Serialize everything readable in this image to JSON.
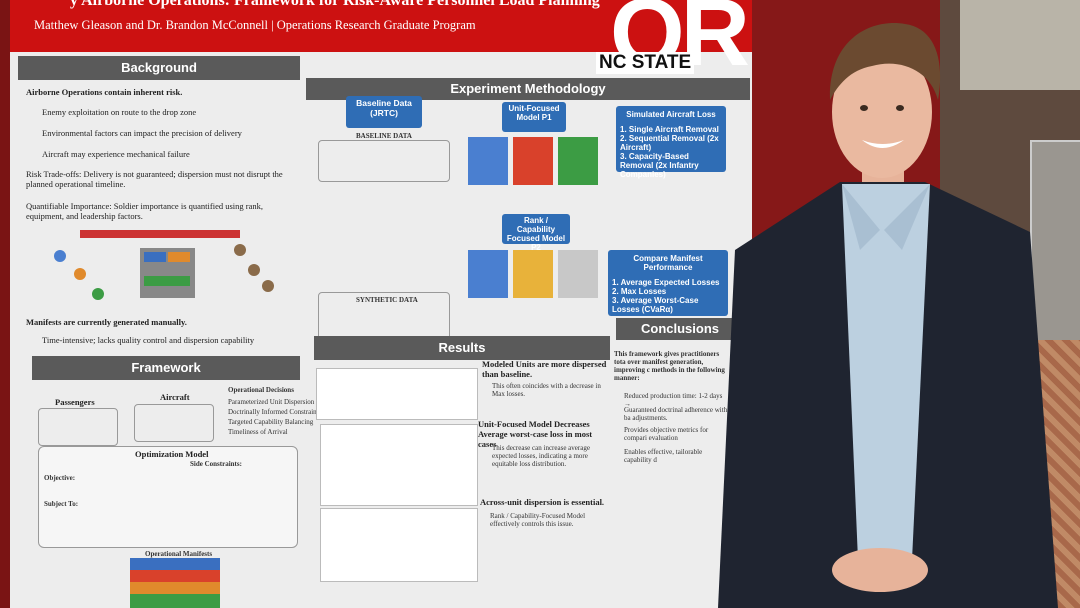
{
  "poster": {
    "title": "y Airborne Operations: Framework for Risk-Aware Personnel Load Planning",
    "authors": "Matthew Gleason and Dr. Brandon McConnell | Operations Research Graduate Program",
    "logo": {
      "mark": "OR",
      "school": "NC STATE"
    },
    "background": {
      "heading": "Background",
      "items": [
        "Airborne Operations contain inherent risk.",
        "Enemy exploitation on route to the drop zone",
        "Environmental factors can impact the precision of delivery",
        "Aircraft may experience mechanical failure",
        "Risk Trade-offs: Delivery is not guaranteed; dispersion must not disrupt the planned operational timeline.",
        "Quantifiable Importance: Soldier importance is quantified using rank, equipment, and leadership factors.",
        "Manifests are currently generated manually.",
        "Time-intensive; lacks quality control and dispersion capability"
      ]
    },
    "framework": {
      "heading": "Framework",
      "passengers": "Passengers",
      "aircraft": "Aircraft",
      "decisions_title": "Operational Decisions",
      "decisions": [
        "Parameterized Unit Dispersion",
        "Doctrinally Informed Constraints",
        "Targeted Capability Balancing",
        "Timeliness of Arrival"
      ],
      "model": "Optimization Model",
      "objective": "Objective:",
      "subject_to": "Subject To:",
      "side_constraints": "Side Constraints:",
      "manifests": "Operational Manifests"
    },
    "methodology": {
      "heading": "Experiment Methodology",
      "baseline": "Baseline Data (JRTC)",
      "baseline_data": "BASELINE DATA",
      "synthetic_data": "SYNTHETIC DATA",
      "unit_model": "Unit-Focused Model P1",
      "rank_model": "Rank / Capability Focused Model P2",
      "loss_title": "Simulated Aircraft Loss",
      "losses": [
        "1. Single Aircraft Removal",
        "2. Sequential Removal (2x Aircraft)",
        "3. Capacity-Based Removal (2x Infantry Companies)"
      ],
      "compare_title": "Compare Manifest Performance",
      "compare": [
        "1. Average Expected Losses",
        "2. Max Losses",
        "3. Average Worst-Case Losses (CVaRα)"
      ]
    },
    "results": {
      "heading": "Results",
      "points": [
        "Modeled Units are more dispersed than baseline.",
        "This often coincides with a decrease in Max losses.",
        "Unit-Focused Model Decreases Average worst-case loss in most cases",
        "This decrease can increase average expected losses, indicating a more equitable loss distribution.",
        "Across-unit dispersion is essential.",
        "Rank / Capability-Focused Model effectively controls this issue."
      ]
    },
    "conclusions": {
      "heading": "Conclusions",
      "intro": "This framework gives practitioners tota over manifest generation, improving c methods in the following manner:",
      "items": [
        "Reduced production time: 1-2 days →",
        "Guaranteed doctrinal adherence with ba adjustments.",
        "Provides objective metrics for compari evaluation",
        "Enables effective, tailorable capability d"
      ]
    }
  }
}
